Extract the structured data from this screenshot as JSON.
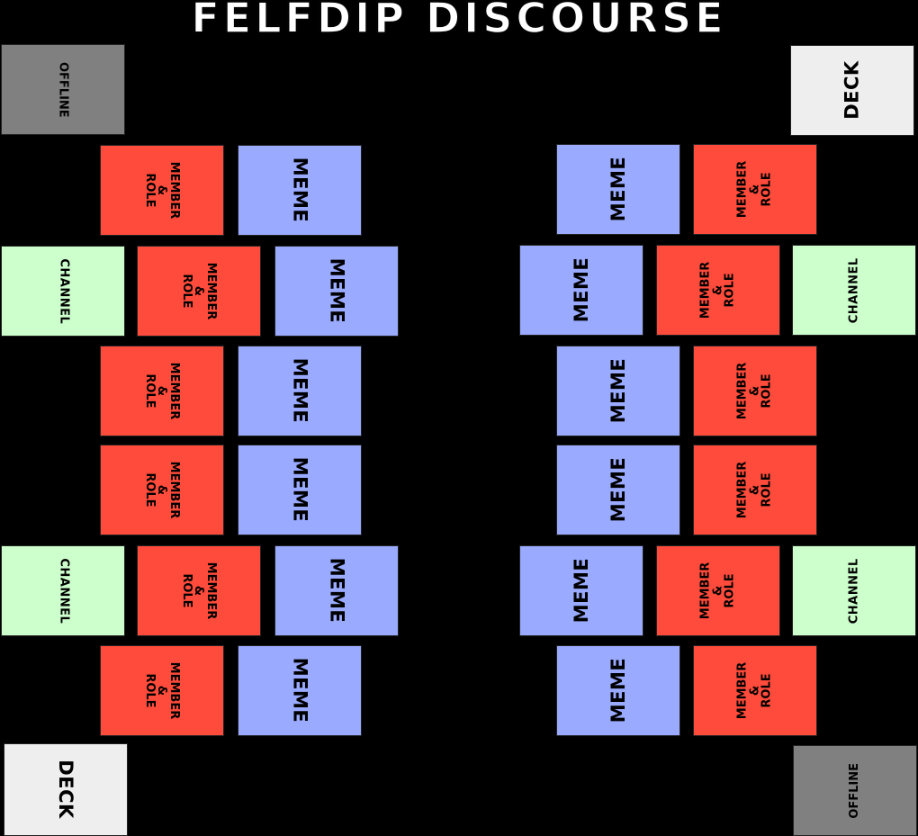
{
  "title": "FELFDIP DISCOURSE",
  "labels": {
    "offline": "OFFLINE",
    "deck": "DECK",
    "channel": "CHANNEL",
    "meme": "MEME",
    "member_role": "MEMBER\n&\nROLE"
  },
  "colors": {
    "background": "#000000",
    "title": "#ffffff",
    "offline": "#808080",
    "deck": "#eeeeee",
    "channel": "#ccffcc",
    "meme": "#99aaff",
    "member_role": "#ff4b3b",
    "text": "#000000"
  },
  "player_top_left": {
    "offline_zone": "OFFLINE",
    "rows": [
      {
        "member_role": "MEMBER\n&\nROLE",
        "meme": "MEME"
      },
      {
        "channel": "CHANNEL",
        "member_role": "MEMBER\n&\nROLE",
        "meme": "MEME"
      },
      {
        "member_role": "MEMBER\n&\nROLE",
        "meme": "MEME"
      },
      {
        "member_role": "MEMBER\n&\nROLE",
        "meme": "MEME"
      },
      {
        "channel": "CHANNEL",
        "member_role": "MEMBER\n&\nROLE",
        "meme": "MEME"
      },
      {
        "member_role": "MEMBER\n&\nROLE",
        "meme": "MEME"
      }
    ],
    "deck_zone": "DECK"
  },
  "player_top_right": {
    "deck_zone": "DECK",
    "rows": [
      {
        "meme": "MEME",
        "member_role": "MEMBER\n&\nROLE"
      },
      {
        "meme": "MEME",
        "member_role": "MEMBER\n&\nROLE",
        "channel": "CHANNEL"
      },
      {
        "meme": "MEME",
        "member_role": "MEMBER\n&\nROLE"
      },
      {
        "meme": "MEME",
        "member_role": "MEMBER\n&\nROLE"
      },
      {
        "meme": "MEME",
        "member_role": "MEMBER\n&\nROLE",
        "channel": "CHANNEL"
      },
      {
        "meme": "MEME",
        "member_role": "MEMBER\n&\nROLE"
      }
    ],
    "offline_zone": "OFFLINE"
  }
}
